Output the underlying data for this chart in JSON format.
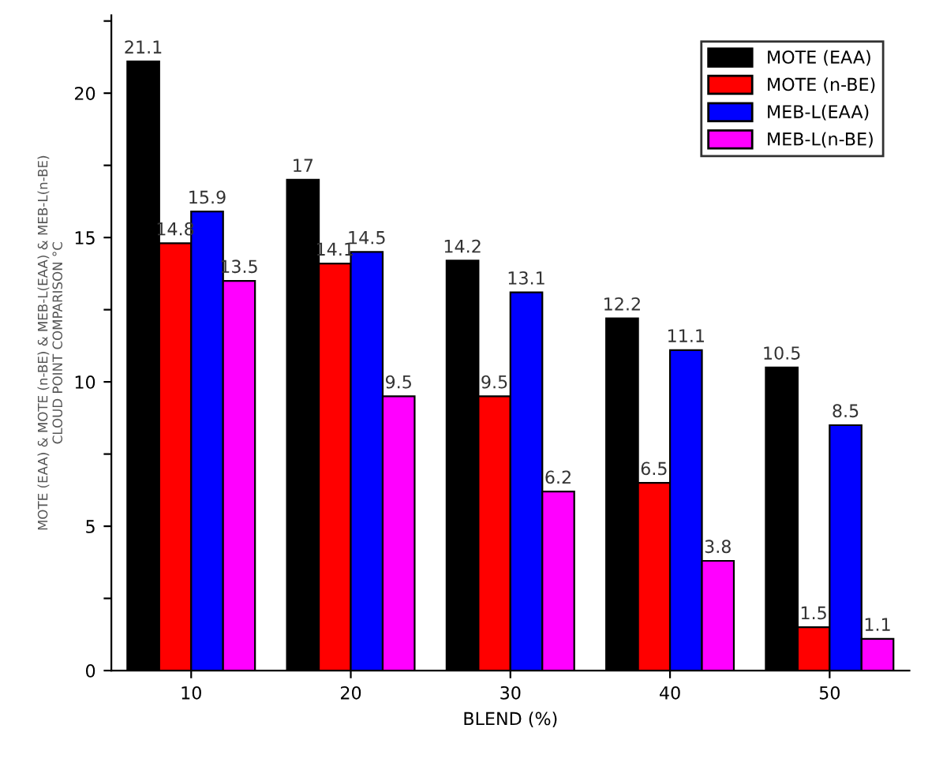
{
  "chart_data": {
    "type": "bar",
    "categories": [
      "10",
      "20",
      "30",
      "40",
      "50"
    ],
    "series": [
      {
        "name": "MOTE (EAA)",
        "color": "#000000",
        "values": [
          21.1,
          17,
          14.2,
          12.2,
          10.5
        ]
      },
      {
        "name": "MOTE (n-BE)",
        "color": "#ff0000",
        "values": [
          14.8,
          14.1,
          9.5,
          6.5,
          1.5
        ]
      },
      {
        "name": "MEB-L(EAA)",
        "color": "#0000ff",
        "values": [
          15.9,
          14.5,
          13.1,
          11.1,
          8.5
        ]
      },
      {
        "name": "MEB-L(n-BE)",
        "color": "#ff00ff",
        "values": [
          13.5,
          9.5,
          6.2,
          3.8,
          1.1
        ]
      }
    ],
    "xlabel": "BLEND (%)",
    "ylabel": "MOTE (EAA) & MOTE (n-BE) & MEB-L(EAA) & MEB-L(n-BE)\nCLOUD POINT COMPARISON °C",
    "ylim": [
      0,
      22.7
    ],
    "yticks": [
      0,
      {
        "value": 2.5,
        "label": null
      },
      5,
      {
        "value": 7.5,
        "label": null
      },
      10,
      {
        "value": 12.5,
        "label": null
      },
      15,
      {
        "value": 17.5,
        "label": null
      },
      20,
      {
        "value": 22.5,
        "label": null
      }
    ],
    "data_labels": true,
    "legend": "top right",
    "grid": false
  }
}
